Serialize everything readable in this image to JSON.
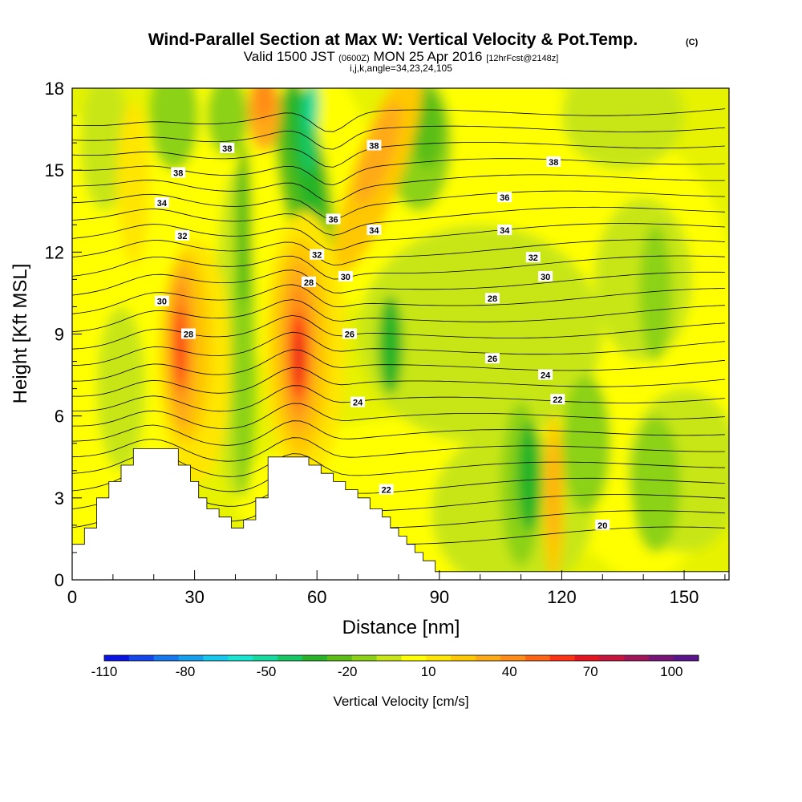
{
  "header": {
    "title": "Wind-Parallel Section at Max W: Vertical Velocity & Pot.Temp.",
    "copyright_mark": "(C)",
    "subtitle_a": "Valid 1500 JST",
    "subtitle_b": "(0600Z)",
    "subtitle_c": "MON 25 Apr 2016",
    "subtitle_d": "[12hrFcst@2148z]",
    "subtitle_2": "i,j,k,angle=34,23,24,105"
  },
  "chart_data": {
    "type": "heatmap",
    "xlabel": "Distance [nm]",
    "ylabel": "Height [Kft MSL]",
    "xlim": [
      0,
      161
    ],
    "ylim": [
      0,
      18
    ],
    "x_ticks": [
      0,
      30,
      60,
      90,
      120,
      150
    ],
    "y_ticks": [
      0,
      3,
      6,
      9,
      12,
      15,
      18
    ],
    "colorbar": {
      "title": "Vertical Velocity [cm/s]",
      "tick_labels": [
        "-110",
        "-80",
        "-50",
        "-20",
        "10",
        "40",
        "70",
        "100"
      ],
      "levels": [
        -110,
        -100,
        -90,
        -80,
        -70,
        -60,
        -50,
        -40,
        -30,
        -20,
        -10,
        0,
        10,
        20,
        30,
        40,
        50,
        60,
        70,
        80,
        90,
        100,
        110
      ],
      "colors": [
        "#0a14e6",
        "#1446f0",
        "#1478f0",
        "#14a0f0",
        "#14c8f0",
        "#14e6d2",
        "#14dca0",
        "#14c864",
        "#28b428",
        "#5abe14",
        "#8cd214",
        "#c8e614",
        "#ffff00",
        "#ffe600",
        "#ffc800",
        "#ffaa14",
        "#ff8c14",
        "#ff6414",
        "#ff3214",
        "#e6141e",
        "#c8143c",
        "#a0145a",
        "#781478",
        "#5a148c"
      ]
    },
    "field": "vertical velocity (cm/s), shaded",
    "contour_field": "potential temperature, lines",
    "contour_labels": [
      {
        "text": "38",
        "x": 38,
        "y": 15.8
      },
      {
        "text": "38",
        "x": 26,
        "y": 14.9
      },
      {
        "text": "38",
        "x": 74,
        "y": 15.9
      },
      {
        "text": "38",
        "x": 118,
        "y": 15.3
      },
      {
        "text": "36",
        "x": 64,
        "y": 13.2
      },
      {
        "text": "36",
        "x": 106,
        "y": 14.0
      },
      {
        "text": "34",
        "x": 22,
        "y": 13.8
      },
      {
        "text": "34",
        "x": 74,
        "y": 12.8
      },
      {
        "text": "34",
        "x": 106,
        "y": 12.8
      },
      {
        "text": "32",
        "x": 27,
        "y": 12.6
      },
      {
        "text": "32",
        "x": 60,
        "y": 11.9
      },
      {
        "text": "32",
        "x": 113,
        "y": 11.8
      },
      {
        "text": "30",
        "x": 22,
        "y": 10.2
      },
      {
        "text": "30",
        "x": 67,
        "y": 11.1
      },
      {
        "text": "30",
        "x": 116,
        "y": 11.1
      },
      {
        "text": "28",
        "x": 28.5,
        "y": 9.0
      },
      {
        "text": "28",
        "x": 58,
        "y": 10.9
      },
      {
        "text": "28",
        "x": 103,
        "y": 10.3
      },
      {
        "text": "26",
        "x": 68,
        "y": 9.0
      },
      {
        "text": "26",
        "x": 103,
        "y": 8.1
      },
      {
        "text": "24",
        "x": 70,
        "y": 6.5
      },
      {
        "text": "24",
        "x": 116,
        "y": 7.5
      },
      {
        "text": "22",
        "x": 77,
        "y": 3.3
      },
      {
        "text": "22",
        "x": 119,
        "y": 6.6
      },
      {
        "text": "20",
        "x": 130,
        "y": 2.0
      }
    ],
    "terrain_profile": [
      [
        0,
        1.3
      ],
      [
        3,
        1.3
      ],
      [
        3,
        1.9
      ],
      [
        6,
        1.9
      ],
      [
        6,
        3.0
      ],
      [
        9,
        3.0
      ],
      [
        9,
        3.6
      ],
      [
        12,
        3.6
      ],
      [
        12,
        4.2
      ],
      [
        15,
        4.2
      ],
      [
        15,
        4.8
      ],
      [
        26,
        4.8
      ],
      [
        26,
        4.2
      ],
      [
        29,
        4.2
      ],
      [
        29,
        3.6
      ],
      [
        31,
        3.6
      ],
      [
        31,
        3.0
      ],
      [
        33,
        3.0
      ],
      [
        33,
        2.6
      ],
      [
        36,
        2.6
      ],
      [
        36,
        2.3
      ],
      [
        39,
        2.3
      ],
      [
        39,
        1.9
      ],
      [
        42,
        1.9
      ],
      [
        42,
        2.2
      ],
      [
        45,
        2.2
      ],
      [
        45,
        3.0
      ],
      [
        48,
        3.0
      ],
      [
        48,
        4.5
      ],
      [
        58,
        4.5
      ],
      [
        58,
        4.2
      ],
      [
        61,
        4.2
      ],
      [
        61,
        3.9
      ],
      [
        64,
        3.9
      ],
      [
        64,
        3.6
      ],
      [
        67,
        3.6
      ],
      [
        67,
        3.3
      ],
      [
        70,
        3.3
      ],
      [
        70,
        3.0
      ],
      [
        73,
        3.0
      ],
      [
        73,
        2.6
      ],
      [
        76,
        2.6
      ],
      [
        76,
        2.3
      ],
      [
        78,
        2.3
      ],
      [
        78,
        1.9
      ],
      [
        80,
        1.9
      ],
      [
        80,
        1.6
      ],
      [
        82,
        1.6
      ],
      [
        82,
        1.3
      ],
      [
        84,
        1.3
      ],
      [
        84,
        1.0
      ],
      [
        86,
        1.0
      ],
      [
        86,
        0.7
      ],
      [
        89,
        0.7
      ],
      [
        89,
        0.3
      ],
      [
        161,
        0.3
      ]
    ]
  }
}
